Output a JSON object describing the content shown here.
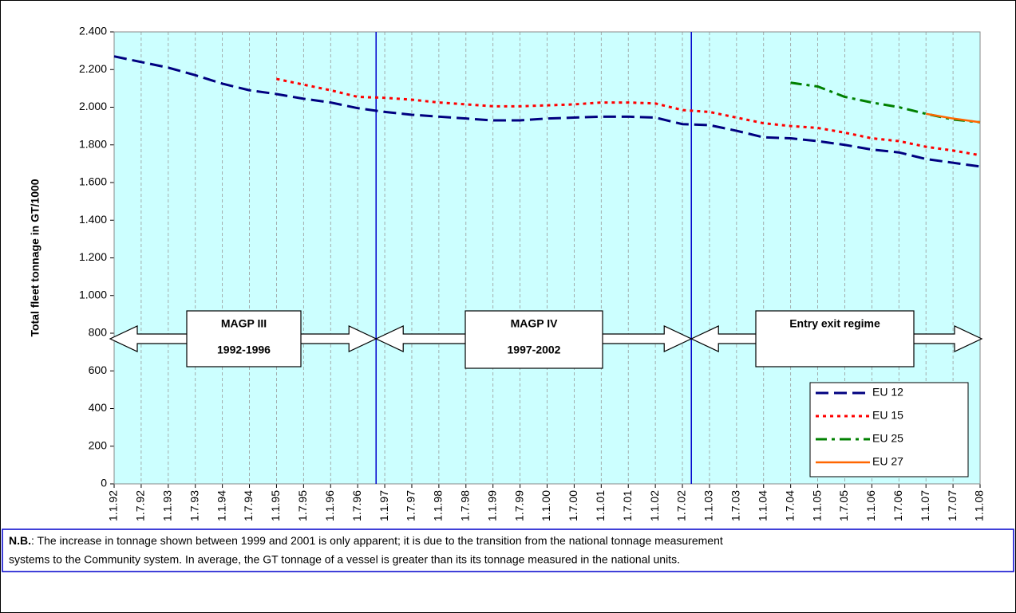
{
  "chart_data": {
    "type": "line",
    "y_axis_label": "Total fleet tonnage in GT/1000",
    "categories": [
      "1.1.92",
      "1.7.92",
      "1.1.93",
      "1.7.93",
      "1.1.94",
      "1.7.94",
      "1.1.95",
      "1.7.95",
      "1.1.96",
      "1.7.96",
      "1.1.97",
      "1.7.97",
      "1.1.98",
      "1.7.98",
      "1.1.99",
      "1.7.99",
      "1.1.00",
      "1.7.00",
      "1.1.01",
      "1.7.01",
      "1.1.02",
      "1.7.02",
      "1.1.03",
      "1.7.03",
      "1.1.04",
      "1.7.04",
      "1.1.05",
      "1.7.05",
      "1.1.06",
      "1.7.06",
      "1.1.07",
      "1.7.07",
      "1.1.08"
    ],
    "series": [
      {
        "name": "EU 12",
        "color": "#000080",
        "dash": "long-dash",
        "values": [
          2270,
          2240,
          2210,
          2170,
          2125,
          2090,
          2070,
          2045,
          2025,
          1995,
          1975,
          1960,
          1950,
          1940,
          1930,
          1930,
          1940,
          1945,
          1950,
          1950,
          1945,
          1910,
          1905,
          1875,
          1840,
          1835,
          1820,
          1800,
          1775,
          1760,
          1725,
          1705,
          1685
        ]
      },
      {
        "name": "EU 15",
        "color": "#ff0000",
        "dash": "dot",
        "values": [
          null,
          null,
          null,
          null,
          null,
          null,
          2150,
          2120,
          2090,
          2055,
          2050,
          2040,
          2025,
          2015,
          2005,
          2005,
          2010,
          2015,
          2025,
          2025,
          2020,
          1985,
          1975,
          1945,
          1915,
          1900,
          1890,
          1865,
          1835,
          1820,
          1790,
          1770,
          1745
        ]
      },
      {
        "name": "EU 25",
        "color": "#008000",
        "dash": "dash-dot",
        "values": [
          null,
          null,
          null,
          null,
          null,
          null,
          null,
          null,
          null,
          null,
          null,
          null,
          null,
          null,
          null,
          null,
          null,
          null,
          null,
          null,
          null,
          null,
          null,
          null,
          null,
          2130,
          2110,
          2055,
          2025,
          2000,
          1965,
          1935,
          1920
        ]
      },
      {
        "name": "EU 27",
        "color": "#ff6600",
        "dash": "solid",
        "values": [
          null,
          null,
          null,
          null,
          null,
          null,
          null,
          null,
          null,
          null,
          null,
          null,
          null,
          null,
          null,
          null,
          null,
          null,
          null,
          null,
          null,
          null,
          null,
          null,
          null,
          null,
          null,
          null,
          null,
          null,
          1965,
          1940,
          1920
        ]
      }
    ],
    "ylim": [
      0,
      2400
    ],
    "yticks": [
      0,
      200,
      400,
      600,
      800,
      {
        "value": 1000,
        "label": "1.000"
      },
      {
        "value": 1200,
        "label": "1.200"
      },
      {
        "value": 1400,
        "label": "1.400"
      },
      {
        "value": 1600,
        "label": "1.600"
      },
      {
        "value": 1800,
        "label": "1.800"
      },
      {
        "value": 2000,
        "label": "2.000"
      },
      {
        "value": 2200,
        "label": "2.200"
      },
      {
        "value": 2400,
        "label": "2.400"
      }
    ],
    "grid": "vertical",
    "background": "#ccffff",
    "legend": "bottom-right",
    "annotations": [
      {
        "lines": [
          "MAGP III",
          "1992-1996"
        ]
      },
      {
        "lines": [
          "MAGP IV",
          "1997-2002"
        ]
      },
      {
        "lines": [
          "Entry exit regime"
        ]
      }
    ],
    "note": {
      "label": "N.B.",
      "lines": [
        ": The increase in tonnage shown between 1999 and 2001 is only apparent; it is due to the transition from the national tonnage measurement",
        "systems to the Community system. In average, the GT tonnage of a vessel is greater than its its tonnage measured in the national units."
      ]
    }
  }
}
